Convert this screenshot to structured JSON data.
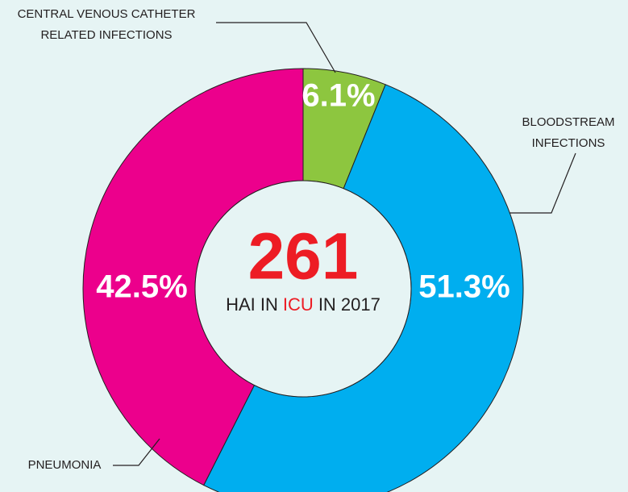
{
  "chart_data": {
    "type": "donut",
    "categories": [
      "CENTRAL VENOUS CATHETER\nRELATED INFECTIONS",
      "BLOODSTREAM\nINFECTIONS",
      "PNEUMONIA"
    ],
    "values": [
      6.1,
      51.3,
      42.5
    ],
    "value_labels": [
      "6.1%",
      "51.3%",
      "42.5%"
    ],
    "colors": [
      "#8dc63f",
      "#00aeef",
      "#ec008c"
    ],
    "center_text": {
      "number": "261",
      "caption": [
        "HAI IN",
        "ICU",
        "IN 2017"
      ]
    }
  }
}
